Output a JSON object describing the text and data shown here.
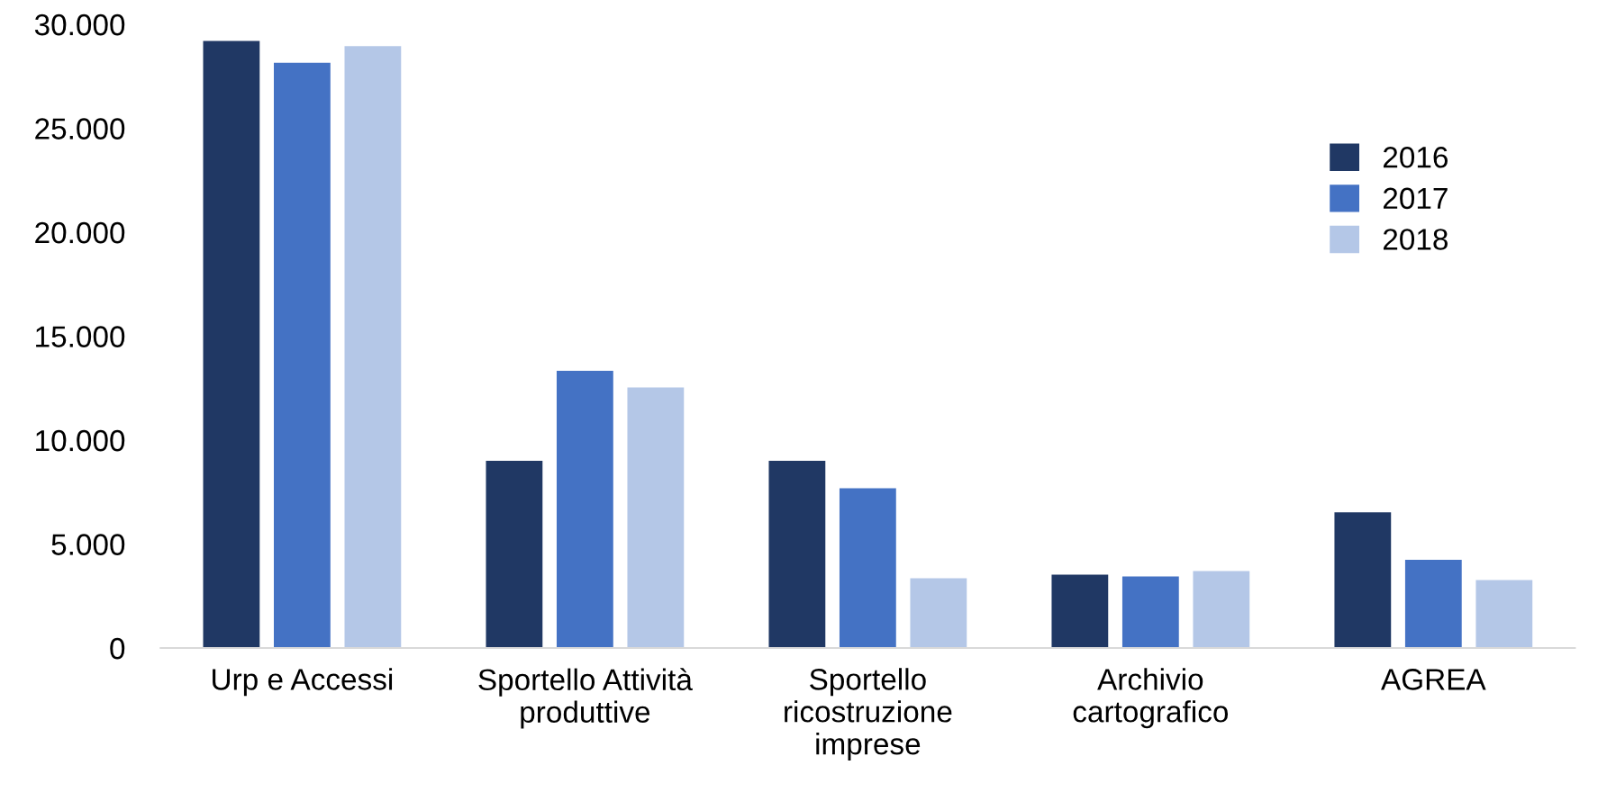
{
  "chart_data": {
    "type": "bar",
    "categories": [
      "Urp e Accessi",
      "Sportello Attività\nproduttive",
      "Sportello\nricostruzione\nimprese",
      "Archivio\ncartografico",
      "AGREA"
    ],
    "series": [
      {
        "name": "2016",
        "color": "#203864",
        "values": [
          29200,
          9000,
          9000,
          3530,
          6530
        ]
      },
      {
        "name": "2017",
        "color": "#4472c4",
        "values": [
          28150,
          13330,
          7680,
          3440,
          4240
        ]
      },
      {
        "name": "2018",
        "color": "#b4c7e7",
        "values": [
          28950,
          12530,
          3350,
          3700,
          3270
        ]
      }
    ],
    "ylim": [
      0,
      30000
    ],
    "yticks": [
      {
        "value": 0,
        "label": "0"
      },
      {
        "value": 5000,
        "label": "5.000"
      },
      {
        "value": 10000,
        "label": "10.000"
      },
      {
        "value": 15000,
        "label": "15.000"
      },
      {
        "value": 20000,
        "label": "20.000"
      },
      {
        "value": 25000,
        "label": "25.000"
      },
      {
        "value": 30000,
        "label": "30.000"
      }
    ],
    "grid": false,
    "legend": "top right"
  }
}
